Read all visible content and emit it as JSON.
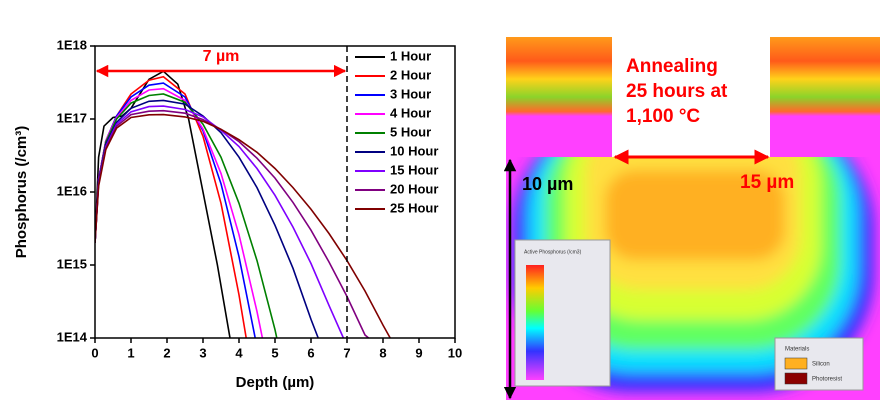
{
  "chart_data": {
    "type": "line",
    "yscale": "log",
    "x_label": "Depth (µm)",
    "y_label": "Phosphorus (/cm³)",
    "xlim": [
      0,
      10
    ],
    "xticks": [
      0,
      1,
      2,
      3,
      4,
      5,
      6,
      7,
      8,
      9,
      10
    ],
    "ylim": [
      100000000000000.0,
      1e+18
    ],
    "yticks": [
      {
        "value": 100000000000000.0,
        "label": "1E14"
      },
      {
        "value": 1000000000000000.0,
        "label": "1E15"
      },
      {
        "value": 1e+16,
        "label": "1E16"
      },
      {
        "value": 1e+17,
        "label": "1E17"
      },
      {
        "value": 1e+18,
        "label": "1E18"
      }
    ],
    "annotation": {
      "text": "7 µm",
      "from": 0,
      "to": 7,
      "color": "#ff0000"
    },
    "legend": "top-right",
    "series": [
      {
        "name": "1 Hour",
        "color": "#000000",
        "x": [
          0,
          0.1,
          0.25,
          0.5,
          0.75,
          1,
          1.5,
          1.9,
          2.3,
          2.6,
          3,
          3.4,
          3.75
        ],
        "values": [
          2000000000000000.0,
          3e+16,
          8e+16,
          1.05e+17,
          1.1e+17,
          1.4e+17,
          3.5e+17,
          4.5e+17,
          3e+17,
          1e+17,
          1e+16,
          1000000000000000.0,
          100000000000000.0
        ]
      },
      {
        "name": "2 Hour",
        "color": "#ff0000",
        "x": [
          0,
          0.1,
          0.3,
          0.6,
          1,
          1.5,
          1.9,
          2.5,
          3,
          3.5,
          4,
          4.2
        ],
        "values": [
          2000000000000000.0,
          1.5e+16,
          5e+16,
          1.1e+17,
          2.2e+17,
          3.4e+17,
          3.8e+17,
          2.2e+17,
          5.8e+16,
          7000000000000000.0,
          390000000000000.0,
          100000000000000.0
        ]
      },
      {
        "name": "3 Hour",
        "color": "#0000ff",
        "x": [
          0,
          0.1,
          0.3,
          0.6,
          1,
          1.5,
          1.9,
          2.5,
          3,
          3.5,
          4,
          4.45
        ],
        "values": [
          2000000000000000.0,
          1.5e+16,
          5e+16,
          1.1e+17,
          2e+17,
          2.9e+17,
          3.1e+17,
          2e+17,
          6.9e+16,
          1.3e+16,
          1300000000000000.0,
          100000000000000.0
        ]
      },
      {
        "name": "4 Hour",
        "color": "#ff00ff",
        "x": [
          0,
          0.1,
          0.3,
          0.6,
          1,
          1.5,
          1.9,
          2.5,
          3,
          3.5,
          4,
          4.5,
          4.65
        ],
        "values": [
          2000000000000000.0,
          1.5e+16,
          5e+16,
          1.05e+17,
          1.8e+17,
          2.5e+17,
          2.6e+17,
          1.8e+17,
          7.3e+16,
          1.8e+16,
          2600000000000000.0,
          230000000000000.0,
          100000000000000.0
        ]
      },
      {
        "name": "5 Hour",
        "color": "#008000",
        "x": [
          0,
          0.1,
          0.3,
          0.6,
          1,
          1.5,
          1.9,
          2.5,
          3,
          3.5,
          4,
          4.5,
          5,
          5.05
        ],
        "values": [
          2000000000000000.0,
          1.4e+16,
          4.8e+16,
          1e+17,
          1.65e+17,
          2.1e+17,
          2.2e+17,
          1.7e+17,
          8.5e+16,
          3e+16,
          7000000000000000.0,
          1150000000000000.0,
          130000000000000.0,
          100000000000000.0
        ]
      },
      {
        "name": "10 Hour",
        "color": "#000080",
        "x": [
          0,
          0.1,
          0.3,
          0.6,
          1,
          1.5,
          1.9,
          2.5,
          3,
          3.5,
          4,
          4.5,
          5,
          5.5,
          6,
          6.2
        ],
        "values": [
          2000000000000000.0,
          1.4e+16,
          4.5e+16,
          9e+16,
          1.4e+17,
          1.75e+17,
          1.8e+17,
          1.6e+17,
          1.1e+17,
          6.5e+16,
          3e+16,
          1.15e+16,
          3500000000000000.0,
          900000000000000.0,
          180000000000000.0,
          100000000000000.0
        ]
      },
      {
        "name": "15 Hour",
        "color": "#7f00ff",
        "x": [
          0,
          0.1,
          0.3,
          0.6,
          1,
          1.5,
          1.9,
          2.5,
          3,
          3.5,
          4,
          4.5,
          5,
          5.5,
          6,
          6.5,
          6.9
        ],
        "values": [
          2000000000000000.0,
          1.3e+16,
          4.2e+16,
          8.5e+16,
          1.25e+17,
          1.48e+17,
          1.5e+17,
          1.35e+17,
          1.07e+17,
          7e+16,
          4.2e+16,
          2.1e+16,
          9000000000000000.0,
          3300000000000000.0,
          1050000000000000.0,
          280000000000000.0,
          100000000000000.0
        ]
      },
      {
        "name": "20 Hour",
        "color": "#800080",
        "x": [
          0,
          0.1,
          0.3,
          0.6,
          1,
          1.5,
          1.9,
          2.5,
          3,
          3.5,
          4,
          4.5,
          5,
          5.5,
          6,
          6.5,
          7,
          7.5,
          7.6
        ],
        "values": [
          2000000000000000.0,
          1.3e+16,
          4e+16,
          8e+16,
          1.15e+17,
          1.28e+17,
          1.3e+17,
          1.2e+17,
          9.8e+16,
          7.2e+16,
          4.9e+16,
          2.9e+16,
          1.55e+16,
          7200000000000000.0,
          3000000000000000.0,
          1100000000000000.0,
          370000000000000.0,
          110000000000000.0,
          100000000000000.0
        ]
      },
      {
        "name": "25 Hour",
        "color": "#800000",
        "x": [
          0,
          0.1,
          0.3,
          0.6,
          1,
          1.5,
          1.9,
          2.5,
          3,
          3.5,
          4,
          4.5,
          5,
          5.5,
          6,
          6.5,
          7,
          7.5,
          8,
          8.2
        ],
        "values": [
          2000000000000000.0,
          1.2e+16,
          3.8e+16,
          7.5e+16,
          1.05e+17,
          1.14e+17,
          1.15e+17,
          1.07e+17,
          9.3e+16,
          7.2e+16,
          5.2e+16,
          3.5e+16,
          2.1e+16,
          1.15e+16,
          5800000000000000.0,
          2700000000000000.0,
          1150000000000000.0,
          440000000000000.0,
          150000000000000.0,
          100000000000000.0
        ]
      }
    ]
  },
  "simulation": {
    "annotation": [
      "Annealing",
      "25 hours at",
      "1,100 °C"
    ],
    "depth_label": "10 µm",
    "width_label": "15 µm",
    "colorbar_title": "Active Phosphorus (/cm3)",
    "materials_title": "Materials",
    "materials": [
      "Silicon",
      "Photoresist"
    ]
  }
}
